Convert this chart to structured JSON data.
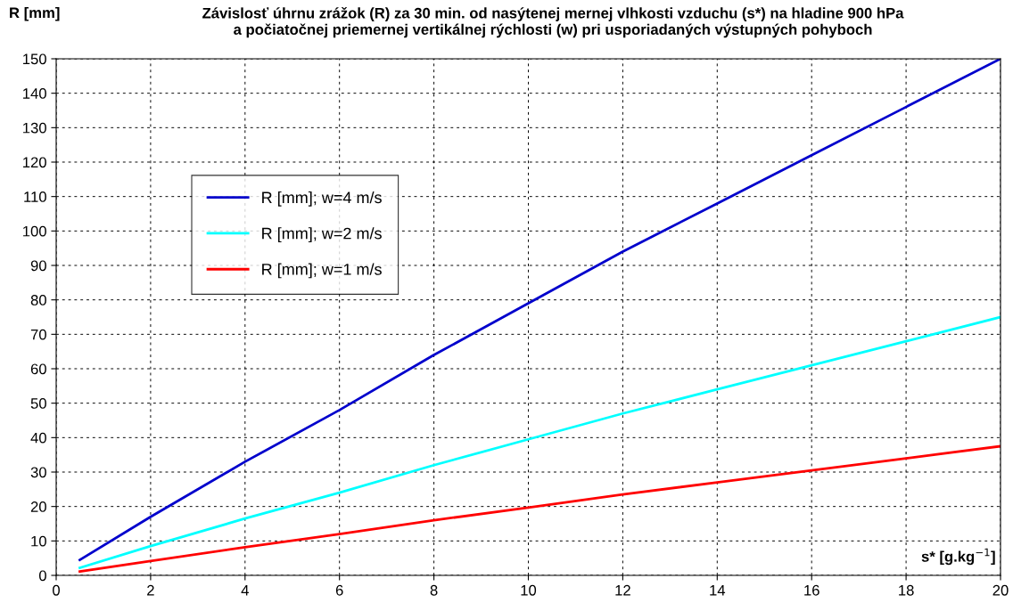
{
  "chart_data": {
    "type": "line",
    "title": "Závislosť úhrnu zrážok (R) za 30 min. od nasýtenej mernej vlhkosti vzduchu (s*) na hladine 900 hPa\na počiatočnej priemernej vertikálnej rýchlosti (w) pri usporiadaných výstupných pohyboch",
    "ylabel": "R [mm]",
    "xlabel": "s* [g.kg$^{−1}$]",
    "x": [
      0.5,
      2,
      4,
      6,
      8,
      10,
      12,
      14,
      16,
      18,
      20
    ],
    "series": [
      {
        "name": "R [mm]; w=4 m/s",
        "color": "#0000cc",
        "values": [
          4.5,
          17,
          33,
          48,
          64,
          79,
          94,
          108,
          122,
          136,
          150
        ]
      },
      {
        "name": "R [mm]; w=2 m/s",
        "color": "#00ffff",
        "values": [
          2.2,
          8.5,
          16.5,
          24,
          32,
          39.5,
          47,
          54,
          61,
          68,
          75
        ]
      },
      {
        "name": "R [mm]; w=1 m/s",
        "color": "#ff0000",
        "values": [
          1.1,
          4.2,
          8.2,
          12,
          16,
          19.7,
          23.5,
          27,
          30.5,
          34,
          37.5
        ]
      }
    ],
    "xlim": [
      0,
      20
    ],
    "xticks": [
      0,
      2,
      4,
      6,
      8,
      10,
      12,
      14,
      16,
      18,
      20
    ],
    "ylim": [
      0,
      150
    ],
    "yticks": [
      0,
      10,
      20,
      30,
      40,
      50,
      60,
      70,
      80,
      90,
      100,
      110,
      120,
      130,
      140,
      150
    ],
    "grid": true,
    "legend": "top left",
    "marker": "none",
    "line_style": "solid"
  }
}
